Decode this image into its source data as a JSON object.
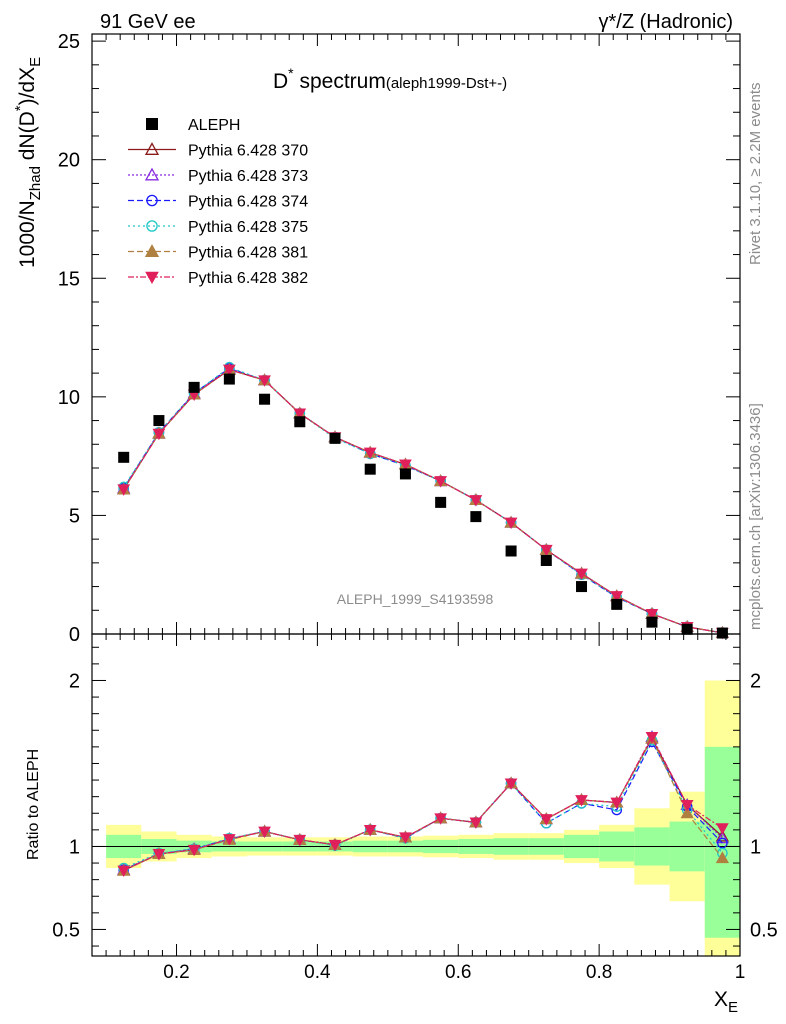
{
  "header": {
    "left": "91 GeV ee",
    "right": "γ*/Z (Hadronic)"
  },
  "side_labels": {
    "rivet": "Rivet 3.1.10, ≥ 2.2M events",
    "mcplots": "mcplots.cern.ch [arXiv:1306.3436]"
  },
  "title": {
    "main": "D",
    "sup": "*",
    "rest": " spectrum",
    "tag": "(aleph1999-Dst+-)"
  },
  "watermark": "ALEPH_1999_S4193598",
  "ylabel_main": "1000/N",
  "ylabel_sub": "Zhad",
  "ylabel_rest": " dN(D",
  "ylabel_sup": "*",
  "ylabel_end": ")/dX",
  "ylabel_endsub": "E",
  "ratio_ylabel": "Ratio to ALEPH",
  "xlabel_main": "X",
  "xlabel_sub": "E",
  "chart_data": {
    "type": "scatter",
    "x": [
      0.125,
      0.175,
      0.225,
      0.275,
      0.325,
      0.375,
      0.425,
      0.475,
      0.525,
      0.575,
      0.625,
      0.675,
      0.725,
      0.775,
      0.825,
      0.875,
      0.925,
      0.975
    ],
    "xlim": [
      0.08,
      1.0
    ],
    "xticks": [
      "0.2",
      "0.4",
      "0.6",
      "0.8",
      "1"
    ],
    "main_ylim": [
      0,
      25.3
    ],
    "main_yticks": [
      "0",
      "5",
      "10",
      "15",
      "20",
      "25"
    ],
    "ratio_ylim": [
      0.34,
      2.28
    ],
    "ratio_yticks": [
      "0.5",
      "1",
      "2"
    ],
    "data": {
      "name": "ALEPH",
      "values": [
        7.45,
        9.0,
        10.4,
        10.75,
        9.9,
        8.95,
        8.25,
        6.95,
        6.75,
        5.55,
        4.95,
        3.5,
        3.1,
        2.0,
        1.25,
        0.5,
        0.2,
        0.04
      ]
    },
    "series": [
      {
        "name": "Pythia 6.428 370",
        "color": "#8b1a1a",
        "dash": "",
        "marker": "triangle-open",
        "values": [
          6.1,
          8.45,
          10.1,
          11.15,
          10.7,
          9.3,
          8.3,
          7.65,
          7.15,
          6.45,
          5.65,
          4.7,
          3.55,
          2.55,
          1.6,
          0.85,
          0.3,
          0.05
        ],
        "ratio": [
          0.855,
          0.955,
          0.98,
          1.045,
          1.09,
          1.04,
          1.01,
          1.1,
          1.055,
          1.17,
          1.145,
          1.38,
          1.165,
          1.28,
          1.265,
          1.65,
          1.25,
          1.06
        ]
      },
      {
        "name": "Pythia 6.428 373",
        "color": "#8a2be2",
        "dash": "2,2",
        "marker": "triangle-open",
        "values": [
          6.15,
          8.45,
          10.15,
          11.2,
          10.7,
          9.3,
          8.3,
          7.65,
          7.15,
          6.45,
          5.65,
          4.7,
          3.55,
          2.55,
          1.6,
          0.85,
          0.3,
          0.05
        ],
        "ratio": [
          0.86,
          0.955,
          0.985,
          1.045,
          1.09,
          1.04,
          1.01,
          1.1,
          1.055,
          1.17,
          1.145,
          1.38,
          1.165,
          1.28,
          1.265,
          1.66,
          1.25,
          1.05
        ]
      },
      {
        "name": "Pythia 6.428 374",
        "color": "#1a1aff",
        "dash": "6,3",
        "marker": "circle-open",
        "values": [
          6.15,
          8.5,
          10.15,
          11.2,
          10.7,
          9.3,
          8.3,
          7.6,
          7.1,
          6.45,
          5.65,
          4.7,
          3.55,
          2.5,
          1.55,
          0.85,
          0.3,
          0.05
        ],
        "ratio": [
          0.86,
          0.955,
          0.985,
          1.045,
          1.09,
          1.04,
          1.01,
          1.1,
          1.05,
          1.17,
          1.145,
          1.38,
          1.14,
          1.26,
          1.22,
          1.63,
          1.24,
          1.02
        ]
      },
      {
        "name": "Pythia 6.428 375",
        "color": "#1fc8c8",
        "dash": "2,3",
        "marker": "circle-open",
        "values": [
          6.2,
          8.5,
          10.15,
          11.25,
          10.7,
          9.3,
          8.25,
          7.6,
          7.1,
          6.45,
          5.65,
          4.7,
          3.55,
          2.5,
          1.55,
          0.85,
          0.3,
          0.05
        ],
        "ratio": [
          0.87,
          0.96,
          0.985,
          1.05,
          1.09,
          1.04,
          1.005,
          1.1,
          1.05,
          1.17,
          1.145,
          1.38,
          1.14,
          1.26,
          1.24,
          1.64,
          1.22,
          0.96
        ]
      },
      {
        "name": "Pythia 6.428 381",
        "color": "#b08040",
        "dash": "6,3",
        "marker": "triangle-filled",
        "values": [
          6.1,
          8.45,
          10.1,
          11.15,
          10.7,
          9.3,
          8.3,
          7.65,
          7.15,
          6.45,
          5.65,
          4.7,
          3.55,
          2.55,
          1.6,
          0.85,
          0.3,
          0.05
        ],
        "ratio": [
          0.855,
          0.955,
          0.98,
          1.04,
          1.09,
          1.04,
          1.01,
          1.1,
          1.055,
          1.17,
          1.145,
          1.38,
          1.165,
          1.28,
          1.265,
          1.65,
          1.2,
          0.93
        ]
      },
      {
        "name": "Pythia 6.428 382",
        "color": "#e0205a",
        "dash": "6,2,2,2",
        "marker": "triangle-down-filled",
        "values": [
          6.1,
          8.45,
          10.1,
          11.15,
          10.7,
          9.3,
          8.3,
          7.65,
          7.15,
          6.45,
          5.65,
          4.7,
          3.55,
          2.55,
          1.6,
          0.85,
          0.3,
          0.05
        ],
        "ratio": [
          0.855,
          0.955,
          0.98,
          1.045,
          1.09,
          1.04,
          1.01,
          1.1,
          1.055,
          1.17,
          1.145,
          1.38,
          1.165,
          1.28,
          1.265,
          1.66,
          1.25,
          1.11
        ]
      }
    ],
    "uncertainty_bands": {
      "inner_color": "#99ff99",
      "outer_color": "#ffff99",
      "inner": [
        [
          0.93,
          1.07
        ],
        [
          0.955,
          1.045
        ],
        [
          0.965,
          1.035
        ],
        [
          0.97,
          1.03
        ],
        [
          0.97,
          1.03
        ],
        [
          0.97,
          1.03
        ],
        [
          0.97,
          1.03
        ],
        [
          0.965,
          1.035
        ],
        [
          0.965,
          1.035
        ],
        [
          0.96,
          1.04
        ],
        [
          0.955,
          1.045
        ],
        [
          0.95,
          1.05
        ],
        [
          0.95,
          1.05
        ],
        [
          0.93,
          1.07
        ],
        [
          0.91,
          1.09
        ],
        [
          0.885,
          1.115
        ],
        [
          0.85,
          1.15
        ],
        [
          0.45,
          1.6
        ]
      ],
      "outer": [
        [
          0.87,
          1.13
        ],
        [
          0.91,
          1.09
        ],
        [
          0.93,
          1.07
        ],
        [
          0.94,
          1.06
        ],
        [
          0.945,
          1.055
        ],
        [
          0.945,
          1.055
        ],
        [
          0.945,
          1.055
        ],
        [
          0.94,
          1.06
        ],
        [
          0.94,
          1.06
        ],
        [
          0.935,
          1.065
        ],
        [
          0.93,
          1.07
        ],
        [
          0.92,
          1.08
        ],
        [
          0.92,
          1.08
        ],
        [
          0.9,
          1.1
        ],
        [
          0.87,
          1.13
        ],
        [
          0.77,
          1.23
        ],
        [
          0.67,
          1.33
        ],
        [
          0.34,
          2.0
        ]
      ]
    }
  }
}
